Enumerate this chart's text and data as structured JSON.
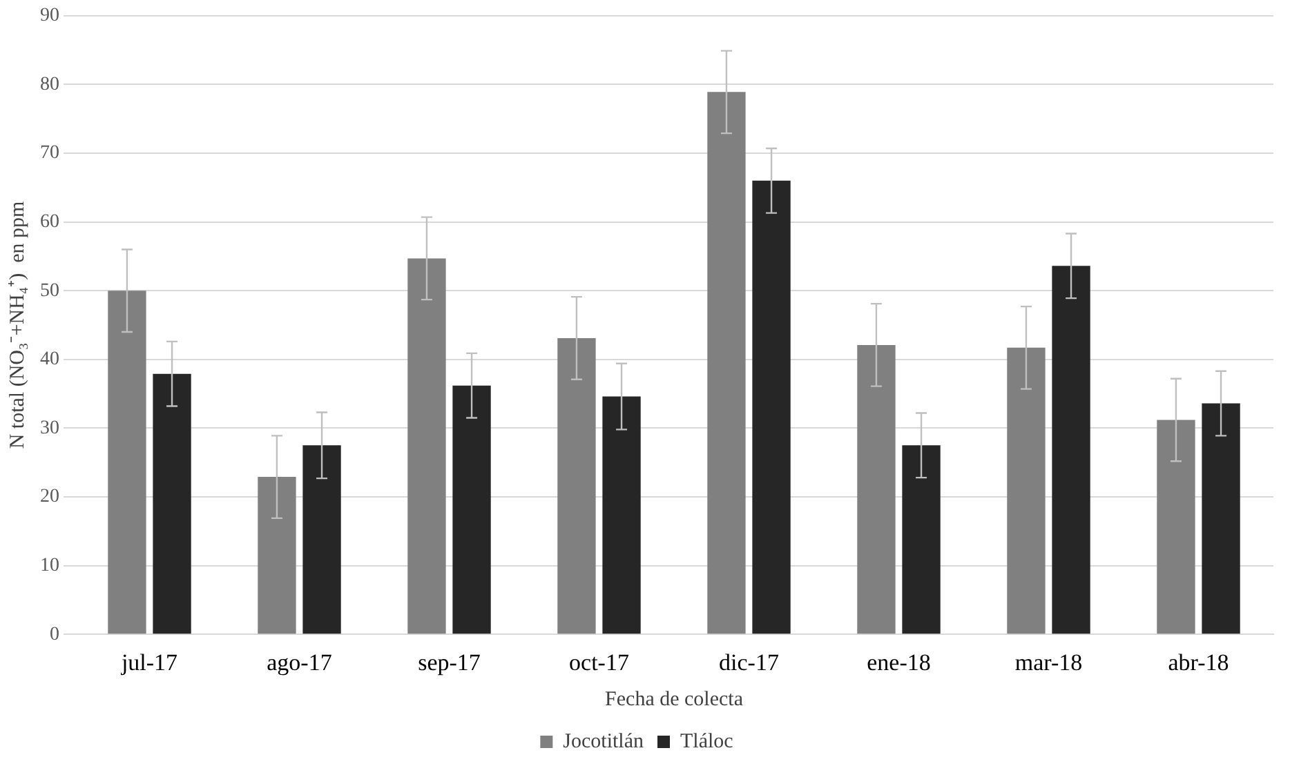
{
  "chart_data": {
    "type": "bar",
    "xlabel": "Fecha de colecta",
    "ylabel": "N total (NO₃⁻+NH₄⁺)  en ppm",
    "categories": [
      "jul-17",
      "ago-17",
      "sep-17",
      "oct-17",
      "dic-17",
      "ene-18",
      "mar-18",
      "abr-18"
    ],
    "series": [
      {
        "name": "Jocotitlán",
        "color": "#808080",
        "values": [
          50,
          22.9,
          54.7,
          43.1,
          78.9,
          42.1,
          41.7,
          31.2
        ],
        "errors": [
          6,
          6,
          6,
          6,
          6,
          6,
          6,
          6
        ]
      },
      {
        "name": "Tláloc",
        "color": "#262626",
        "values": [
          37.9,
          27.5,
          36.2,
          34.6,
          66,
          27.5,
          53.6,
          33.6
        ],
        "errors": [
          4.7,
          4.8,
          4.7,
          4.8,
          4.7,
          4.7,
          4.7,
          4.7
        ]
      }
    ],
    "ylim": [
      0,
      90
    ],
    "yticks": [
      0,
      10,
      20,
      30,
      40,
      50,
      60,
      70,
      80,
      90
    ],
    "grid": "y",
    "legend": "bottom"
  }
}
